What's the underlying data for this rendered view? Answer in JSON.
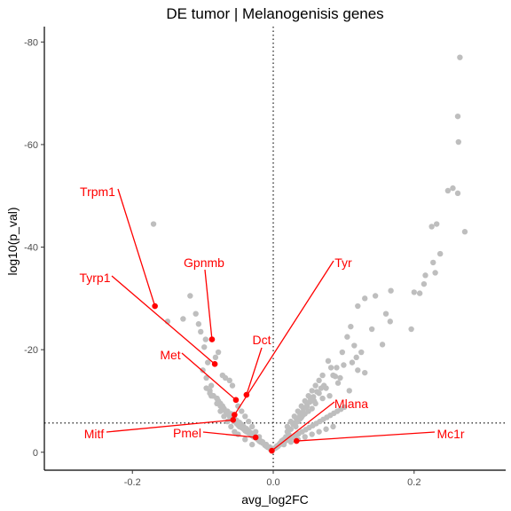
{
  "chart_data": {
    "type": "scatter",
    "title": "DE tumor | Melanogenisis genes",
    "xlabel": "avg_log2FC",
    "ylabel": "log10(p_val)",
    "xlim": [
      -0.325,
      0.33
    ],
    "ylim": [
      -83,
      3.5
    ],
    "x_ticks": [
      -0.2,
      0.0,
      0.2
    ],
    "x_tick_labels": [
      "-0.2",
      "0.0",
      "0.2"
    ],
    "y_ticks": [
      -80,
      -60,
      -40,
      -20,
      0
    ],
    "y_tick_labels": [
      "-80",
      "-60",
      "-40",
      "-20",
      "0"
    ],
    "grid": false,
    "reference_lines": {
      "vertical_x": 0,
      "horizontal_y": -5.7
    },
    "colors": {
      "background_genes": "#bebebe",
      "highlight_genes": "#ff0000",
      "reference_line": "#000000"
    },
    "background_genes": {
      "x": [
        0.265,
        0.262,
        0.263,
        0.255,
        0.262,
        0.248,
        0.272,
        0.232,
        0.225,
        0.237,
        0.227,
        0.23,
        0.216,
        0.208,
        0.214,
        0.196,
        0.2,
        0.166,
        0.167,
        0.145,
        0.13,
        0.16,
        0.12,
        0.14,
        0.11,
        0.125,
        0.155,
        0.115,
        0.105,
        0.118,
        0.098,
        0.1,
        0.112,
        0.09,
        0.12,
        0.085,
        0.13,
        0.095,
        0.108,
        0.075,
        0.08,
        0.07,
        0.072,
        0.06,
        0.065,
        0.055,
        0.058,
        0.05,
        0.045,
        0.048,
        0.04,
        0.042,
        0.035,
        0.038,
        0.03,
        0.025,
        0.032,
        0.02,
        0.022,
        0.018,
        0.015,
        0.012,
        0.01,
        0.008,
        0.005,
        0.003,
        -0.002,
        -0.005,
        -0.008,
        -0.01,
        -0.012,
        -0.015,
        -0.018,
        -0.02,
        -0.022,
        -0.025,
        -0.028,
        -0.03,
        -0.032,
        -0.035,
        -0.038,
        -0.04,
        -0.042,
        -0.045,
        -0.048,
        -0.05,
        -0.052,
        -0.055,
        -0.06,
        -0.062,
        -0.065,
        -0.068,
        -0.07,
        -0.072,
        -0.075,
        -0.078,
        -0.08,
        -0.085,
        -0.09,
        -0.03,
        -0.04,
        -0.05,
        -0.055,
        -0.06,
        -0.065,
        -0.07,
        -0.075,
        -0.08,
        -0.085,
        -0.09,
        -0.058,
        -0.062,
        -0.068,
        -0.072,
        -0.05,
        -0.045,
        -0.04,
        -0.035,
        -0.03,
        -0.025,
        -0.02,
        -0.015,
        -0.01,
        -0.005,
        0.005,
        0.015,
        0.025,
        0.035,
        0.045,
        0.055,
        0.065,
        0.075,
        0.085,
        0.025,
        0.03,
        0.035,
        0.04,
        0.045,
        0.05,
        0.055,
        0.06,
        0.065,
        0.07,
        0.02,
        0.022,
        0.028,
        0.033,
        0.038,
        0.043,
        0.048,
        0.053,
        -0.088,
        -0.095,
        -0.1,
        -0.093,
        -0.082,
        -0.078,
        -0.098,
        -0.096,
        -0.103,
        -0.106,
        -0.11,
        -0.118,
        -0.128,
        -0.15,
        -0.17,
        -0.095,
        -0.088,
        -0.08,
        -0.075,
        -0.07,
        -0.065,
        -0.06,
        -0.058,
        -0.055,
        -0.052,
        -0.048,
        -0.045,
        -0.042,
        -0.038,
        -0.035,
        -0.032,
        -0.028,
        -0.025,
        -0.022,
        -0.018,
        -0.015,
        -0.012,
        -0.008,
        -0.004,
        0.002,
        0.007,
        0.011,
        0.016,
        0.021,
        0.026,
        0.031,
        0.036,
        0.041,
        0.046,
        0.051,
        0.056,
        0.061,
        0.066,
        0.071,
        0.076,
        0.081,
        0.086,
        0.091,
        0.096,
        0.101,
        0.092,
        0.088,
        0.082,
        0.078,
        0.068,
        0.062,
        0.057,
        0.052,
        0.047,
        0.042,
        0.037,
        0.032
      ],
      "y": [
        -77,
        -65.5,
        -60.5,
        -51.5,
        -50.5,
        -51,
        -43,
        -44.5,
        -44,
        -38.7,
        -37,
        -35,
        -34.5,
        -31,
        -32.8,
        -24,
        -31.2,
        -25.5,
        -31.5,
        -30.5,
        -30,
        -27,
        -28.5,
        -24,
        -24.5,
        -19.5,
        -21,
        -20.8,
        -22.5,
        -18.5,
        -19.5,
        -17,
        -17.5,
        -16.5,
        -16,
        -15,
        -15.5,
        -14.5,
        -12,
        -12.5,
        -11,
        -10.5,
        -13,
        -9.5,
        -11.5,
        -8.5,
        -10,
        -8,
        -7.5,
        -9,
        -6.8,
        -7.2,
        -6,
        -6.5,
        -5.5,
        -4.5,
        -5,
        -4,
        -3.5,
        -3,
        -2.5,
        -2.2,
        -1.8,
        -1.5,
        -1.2,
        -0.8,
        -0.5,
        -0.8,
        -1,
        -1.2,
        -1.5,
        -1.8,
        -2,
        -2.2,
        -2.5,
        -2.8,
        -3,
        -3.2,
        -3.5,
        -3.8,
        -4,
        -4.2,
        -4.5,
        -4.8,
        -5,
        -5.3,
        -5.6,
        -6,
        -6.5,
        -7,
        -7.5,
        -8,
        -8.5,
        -9,
        -9.5,
        -10,
        -10.5,
        -11,
        -11.5,
        -1.5,
        -2.5,
        -3.5,
        -4,
        -5,
        -6,
        -7,
        -8,
        -9.5,
        -11,
        -12,
        -13,
        -14,
        -14.5,
        -15,
        -9,
        -8,
        -7,
        -6,
        -5,
        -4,
        -3,
        -2,
        -1.5,
        -1,
        -1,
        -1.5,
        -2,
        -2.5,
        -3,
        -3.5,
        -4,
        -4.5,
        -5,
        -6,
        -7,
        -8,
        -9,
        -10,
        -11,
        -12,
        -13,
        -14,
        -15,
        -5,
        -4.5,
        -5.5,
        -6.5,
        -7.5,
        -8.5,
        -9.5,
        -10.5,
        -13,
        -14.5,
        -16,
        -17.5,
        -18.5,
        -19.5,
        -20.5,
        -22,
        -23.5,
        -25,
        -27,
        -30.5,
        -26,
        -25.5,
        -44.5,
        -12.5,
        -11,
        -10.5,
        -9,
        -8.5,
        -8,
        -7.5,
        -7,
        -6.5,
        -6.2,
        -5.8,
        -5.4,
        -5,
        -4.6,
        -4.2,
        -3.8,
        -3.4,
        -3,
        -2.6,
        -2.2,
        -1.8,
        -1.4,
        -1,
        -0.6,
        -0.8,
        -1.2,
        -1.6,
        -2,
        -2.4,
        -2.8,
        -3.2,
        -3.6,
        -4,
        -4.4,
        -4.8,
        -5.2,
        -5.6,
        -6,
        -6.4,
        -6.8,
        -7.2,
        -7.6,
        -8,
        -8.4,
        -8.8,
        -13.5,
        -14.8,
        -16.5,
        -17.8,
        -12.5,
        -11.8,
        -10.8,
        -9.8,
        -8.8,
        -7.8,
        -6.8,
        -5.8
      ]
    },
    "highlight_genes": [
      {
        "name": "Trpm1",
        "x": -0.168,
        "y": -28.5
      },
      {
        "name": "Gpnmb",
        "x": -0.087,
        "y": -22
      },
      {
        "name": "Tyrp1",
        "x": -0.083,
        "y": -17.2
      },
      {
        "name": "Met",
        "x": -0.053,
        "y": -10.2
      },
      {
        "name": "Dct",
        "x": -0.038,
        "y": -11.2
      },
      {
        "name": "Tyr",
        "x": -0.055,
        "y": -7.3
      },
      {
        "name": "Mitf",
        "x": -0.057,
        "y": -6.3
      },
      {
        "name": "Pmel",
        "x": -0.025,
        "y": -2.9
      },
      {
        "name": "Mlana",
        "x": -0.002,
        "y": -0.3
      },
      {
        "name": "Mc1r",
        "x": 0.033,
        "y": -2.2
      }
    ]
  }
}
